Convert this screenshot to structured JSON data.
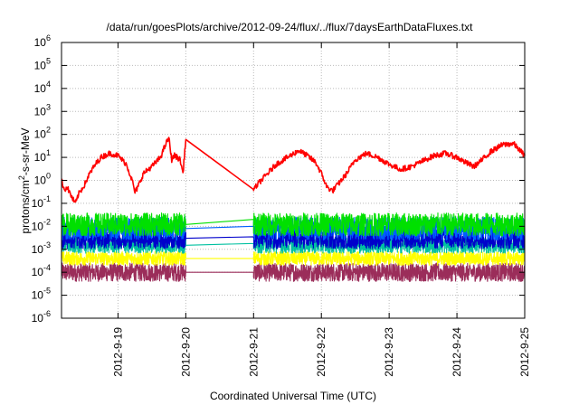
{
  "chart_data": {
    "type": "line",
    "title": "/data/run/goesPlots/archive/2012-09-24/flux/../flux/7daysEarthDataFluxes.txt",
    "xlabel": "Coordinated Universal Time (UTC)",
    "ylabel": {
      "pre": "protons/cm",
      "sup": "2",
      "post": "-s-sr-MeV"
    },
    "y_scale": "log",
    "ylim_exponent": [
      -6,
      6
    ],
    "y_tick_labels": [
      {
        "exp": -6,
        "label": "10",
        "sup": "-6"
      },
      {
        "exp": -5,
        "label": "10",
        "sup": "-5"
      },
      {
        "exp": -4,
        "label": "10",
        "sup": "-4"
      },
      {
        "exp": -3,
        "label": "10",
        "sup": "-3"
      },
      {
        "exp": -2,
        "label": "10",
        "sup": "-2"
      },
      {
        "exp": -1,
        "label": "10",
        "sup": "-1"
      },
      {
        "exp": 0,
        "label": "10",
        "sup": "0"
      },
      {
        "exp": 1,
        "label": "10",
        "sup": "1"
      },
      {
        "exp": 2,
        "label": "10",
        "sup": "2"
      },
      {
        "exp": 3,
        "label": "10",
        "sup": "3"
      },
      {
        "exp": 4,
        "label": "10",
        "sup": "4"
      },
      {
        "exp": 5,
        "label": "10",
        "sup": "5"
      },
      {
        "exp": 6,
        "label": "10",
        "sup": "6"
      }
    ],
    "x_range": [
      "2012-09-18T04:00",
      "2012-09-25T00:00"
    ],
    "x_tick_labels": [
      "2012-9-19",
      "2012-9-20",
      "2012-9-21",
      "2012-9-22",
      "2012-9-23",
      "2012-9-24",
      "2012-9-25"
    ],
    "grid": true,
    "data_gap": [
      "2012-09-20T00:00",
      "2012-09-21T00:00"
    ],
    "series": [
      {
        "color": "#ff0000",
        "noise_decades": 0.12,
        "points": [
          [
            "2012-09-18T04:00",
            1.0
          ],
          [
            "2012-09-18T05:00",
            0.4
          ],
          [
            "2012-09-18T06:00",
            0.5
          ],
          [
            "2012-09-18T08:00",
            0.15
          ],
          [
            "2012-09-18T09:00",
            0.1
          ],
          [
            "2012-09-18T10:00",
            0.25
          ],
          [
            "2012-09-18T12:00",
            0.6
          ],
          [
            "2012-09-18T14:00",
            2
          ],
          [
            "2012-09-18T16:00",
            5
          ],
          [
            "2012-09-18T18:00",
            10
          ],
          [
            "2012-09-18T21:00",
            15
          ],
          [
            "2012-09-19T00:00",
            12
          ],
          [
            "2012-09-19T03:00",
            5
          ],
          [
            "2012-09-19T05:00",
            1
          ],
          [
            "2012-09-19T06:00",
            0.3
          ],
          [
            "2012-09-19T07:00",
            0.5
          ],
          [
            "2012-09-19T09:00",
            2
          ],
          [
            "2012-09-19T12:00",
            4
          ],
          [
            "2012-09-19T15:00",
            10
          ],
          [
            "2012-09-19T17:00",
            40
          ],
          [
            "2012-09-19T18:00",
            70
          ],
          [
            "2012-09-19T19:00",
            8
          ],
          [
            "2012-09-19T20:00",
            12
          ],
          [
            "2012-09-19T22:00",
            8
          ],
          [
            "2012-09-19T23:00",
            2
          ],
          [
            "2012-09-20T00:00",
            60
          ],
          [
            "2012-09-21T00:00",
            0.4
          ],
          [
            "2012-09-21T02:00",
            0.8
          ],
          [
            "2012-09-21T05:00",
            2
          ],
          [
            "2012-09-21T08:00",
            5
          ],
          [
            "2012-09-21T12:00",
            10
          ],
          [
            "2012-09-21T16:00",
            20
          ],
          [
            "2012-09-21T19:00",
            12
          ],
          [
            "2012-09-21T22:00",
            6
          ],
          [
            "2012-09-22T00:00",
            2
          ],
          [
            "2012-09-22T02:00",
            0.5
          ],
          [
            "2012-09-22T04:00",
            0.35
          ],
          [
            "2012-09-22T06:00",
            0.7
          ],
          [
            "2012-09-22T09:00",
            2
          ],
          [
            "2012-09-22T12:00",
            8
          ],
          [
            "2012-09-22T16:00",
            15
          ],
          [
            "2012-09-22T20:00",
            10
          ],
          [
            "2012-09-23T00:00",
            5
          ],
          [
            "2012-09-23T04:00",
            3
          ],
          [
            "2012-09-23T08:00",
            4
          ],
          [
            "2012-09-23T12:00",
            7
          ],
          [
            "2012-09-23T16:00",
            12
          ],
          [
            "2012-09-23T20:00",
            15
          ],
          [
            "2012-09-24T00:00",
            10
          ],
          [
            "2012-09-24T03:00",
            6
          ],
          [
            "2012-09-24T06:00",
            4
          ],
          [
            "2012-09-24T09:00",
            8
          ],
          [
            "2012-09-24T12:00",
            18
          ],
          [
            "2012-09-24T16:00",
            35
          ],
          [
            "2012-09-24T20:00",
            40
          ],
          [
            "2012-09-25T00:00",
            12
          ]
        ]
      },
      {
        "color": "#00e000",
        "band": [
          0.012,
          0.02
        ],
        "noise_decades": 0.5
      },
      {
        "color": "#0060ff",
        "band": [
          0.008,
          0.01
        ],
        "noise_decades": 0.5
      },
      {
        "color": "#0000cc",
        "band": [
          0.003,
          0.0035
        ],
        "noise_decades": 0.45
      },
      {
        "color": "#00c0a0",
        "band": [
          0.0015,
          0.0018
        ],
        "noise_decades": 0.35
      },
      {
        "color": "#ffff00",
        "band": [
          0.0004,
          0.0004
        ],
        "noise_decades": 0.3
      },
      {
        "color": "#9b2d5a",
        "band": [
          0.0001,
          0.0001
        ],
        "noise_decades": 0.4
      }
    ]
  }
}
